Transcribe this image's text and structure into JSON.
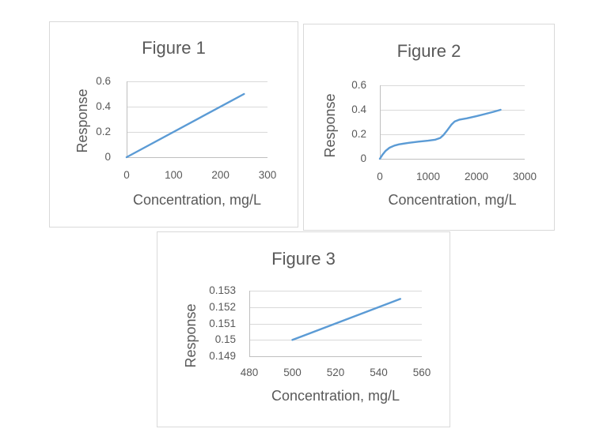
{
  "page": {
    "background": "#ffffff",
    "description": "Three line charts titled Figure 1, Figure 2 and Figure 3"
  },
  "colors": {
    "series_line": "#5b9bd5",
    "gridline": "#d9d9d9",
    "axis_line": "#bfbfbf",
    "text": "#595959",
    "box_border": "#d9d9d9"
  },
  "chart_data": [
    {
      "type": "line",
      "title": "Figure 1",
      "xlabel": "Concentration, mg/L",
      "ylabel": "Response",
      "xlim": [
        0,
        300
      ],
      "ylim": [
        0,
        0.6
      ],
      "xticks": [
        0,
        100,
        200,
        300
      ],
      "xtick_labels": [
        "0",
        "100",
        "200",
        "300"
      ],
      "yticks": [
        0.6,
        0.4,
        0.2,
        0
      ],
      "ytick_labels": [
        "0.6",
        "0.4",
        "0.2",
        "0"
      ],
      "grid": "horizontal",
      "legend": "none",
      "series": [
        {
          "name": "Response",
          "x": [
            0,
            250
          ],
          "y": [
            0,
            0.5
          ]
        }
      ]
    },
    {
      "type": "line",
      "title": "Figure 2",
      "xlabel": "Concentration, mg/L",
      "ylabel": "Response",
      "xlim": [
        0,
        3000
      ],
      "ylim": [
        0,
        0.6
      ],
      "xticks": [
        0,
        1000,
        2000,
        3000
      ],
      "xtick_labels": [
        "0",
        "1000",
        "2000",
        "3000"
      ],
      "yticks": [
        0.6,
        0.4,
        0.2,
        0
      ],
      "ytick_labels": [
        "0.6",
        "0.4",
        "0.2",
        "0"
      ],
      "grid": "horizontal",
      "legend": "none",
      "series": [
        {
          "name": "Response",
          "x": [
            0,
            50,
            120,
            200,
            300,
            400,
            600,
            800,
            1000,
            1150,
            1250,
            1320,
            1400,
            1480,
            1550,
            1650,
            1800,
            2000,
            2200,
            2350,
            2500
          ],
          "y": [
            0,
            0.03,
            0.065,
            0.09,
            0.108,
            0.118,
            0.13,
            0.14,
            0.148,
            0.156,
            0.17,
            0.195,
            0.235,
            0.278,
            0.305,
            0.32,
            0.33,
            0.348,
            0.368,
            0.383,
            0.4
          ]
        }
      ]
    },
    {
      "type": "line",
      "title": "Figure 3",
      "xlabel": "Concentration, mg/L",
      "ylabel": "Response",
      "xlim": [
        480,
        560
      ],
      "ylim": [
        0.149,
        0.153
      ],
      "xticks": [
        480,
        500,
        520,
        540,
        560
      ],
      "xtick_labels": [
        "480",
        "500",
        "520",
        "540",
        "560"
      ],
      "yticks": [
        0.153,
        0.152,
        0.151,
        0.15,
        0.149
      ],
      "ytick_labels": [
        "0.153",
        "0.152",
        "0.151",
        "0.15",
        "0.149"
      ],
      "grid": "horizontal",
      "legend": "none",
      "series": [
        {
          "name": "Response",
          "x": [
            500,
            550
          ],
          "y": [
            0.15,
            0.1525
          ]
        }
      ]
    }
  ]
}
